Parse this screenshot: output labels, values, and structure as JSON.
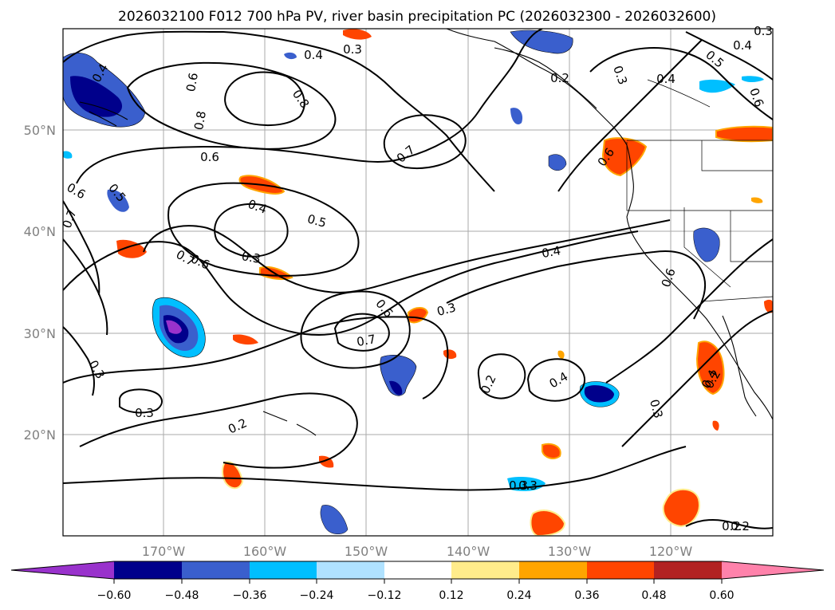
{
  "title": "2026032100 F012 700 hPa PV, river basin precipitation PC (2026032300 - 2026032600)",
  "lat_ticks": [
    "50°N",
    "40°N",
    "30°N",
    "20°N"
  ],
  "lon_ticks": [
    "170°W",
    "160°W",
    "150°W",
    "140°W",
    "130°W",
    "120°W"
  ],
  "contour_labels": [
    "0.4",
    "0.4",
    "0.3",
    "0.3",
    "0.4",
    "0.5",
    "0.6",
    "0.2",
    "0.3",
    "0.4",
    "0.6",
    "0.8",
    "0.8",
    "0.6",
    "0.7",
    "0.6",
    "0.5",
    "0.6",
    "0.7",
    "0.4",
    "0.5",
    "0.3",
    "0.6",
    "0.7",
    "0.6",
    "0.7",
    "0.3",
    "0.6",
    "0.4",
    "0.4",
    "0.3",
    "0.2",
    "0.4",
    "0.2",
    "0.3",
    "0.2",
    "0.3",
    "0.3",
    "0.3",
    "0.2",
    "0.2"
  ],
  "colorbar": {
    "ticks": [
      "−0.60",
      "−0.48",
      "−0.36",
      "−0.24",
      "−0.12",
      "0.12",
      "0.24",
      "0.36",
      "0.48",
      "0.60"
    ],
    "colors": [
      "#9932cc",
      "#00008b",
      "#3a5fcd",
      "#00bfff",
      "#b0e2ff",
      "#ffffff",
      "#ffec8b",
      "#ffa500",
      "#ff4500",
      "#b22222",
      "#ff82ab"
    ]
  }
}
